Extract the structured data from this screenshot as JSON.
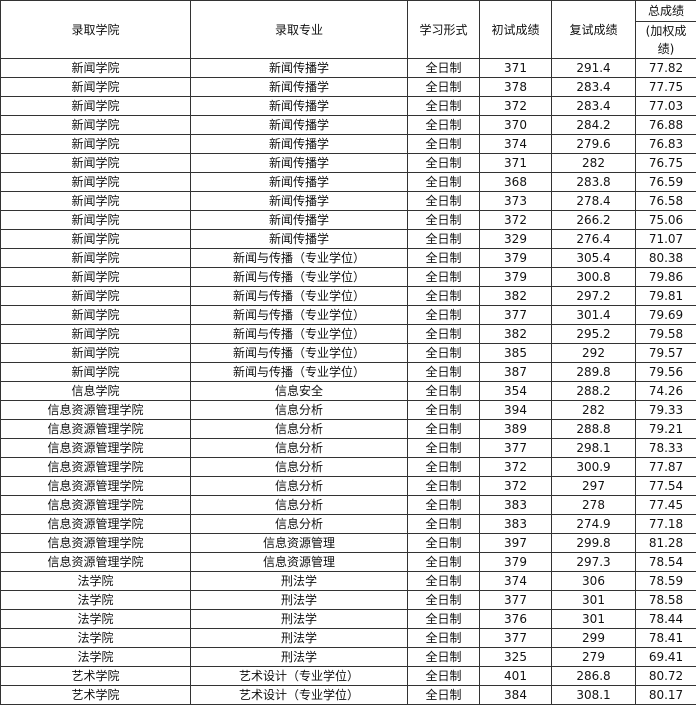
{
  "headers": [
    "录取学院",
    "录取专业",
    "学习形式",
    "初试成绩",
    "复试成绩"
  ],
  "total_header": {
    "top": "总成绩",
    "bottom1": "(加权成",
    "bottom2": "绩)"
  },
  "rows": [
    [
      "新闻学院",
      "新闻传播学",
      "全日制",
      "371",
      "291.4",
      "77.82"
    ],
    [
      "新闻学院",
      "新闻传播学",
      "全日制",
      "378",
      "283.4",
      "77.75"
    ],
    [
      "新闻学院",
      "新闻传播学",
      "全日制",
      "372",
      "283.4",
      "77.03"
    ],
    [
      "新闻学院",
      "新闻传播学",
      "全日制",
      "370",
      "284.2",
      "76.88"
    ],
    [
      "新闻学院",
      "新闻传播学",
      "全日制",
      "374",
      "279.6",
      "76.83"
    ],
    [
      "新闻学院",
      "新闻传播学",
      "全日制",
      "371",
      "282",
      "76.75"
    ],
    [
      "新闻学院",
      "新闻传播学",
      "全日制",
      "368",
      "283.8",
      "76.59"
    ],
    [
      "新闻学院",
      "新闻传播学",
      "全日制",
      "373",
      "278.4",
      "76.58"
    ],
    [
      "新闻学院",
      "新闻传播学",
      "全日制",
      "372",
      "266.2",
      "75.06"
    ],
    [
      "新闻学院",
      "新闻传播学",
      "全日制",
      "329",
      "276.4",
      "71.07"
    ],
    [
      "新闻学院",
      "新闻与传播（专业学位）",
      "全日制",
      "379",
      "305.4",
      "80.38"
    ],
    [
      "新闻学院",
      "新闻与传播（专业学位）",
      "全日制",
      "379",
      "300.8",
      "79.86"
    ],
    [
      "新闻学院",
      "新闻与传播（专业学位）",
      "全日制",
      "382",
      "297.2",
      "79.81"
    ],
    [
      "新闻学院",
      "新闻与传播（专业学位）",
      "全日制",
      "377",
      "301.4",
      "79.69"
    ],
    [
      "新闻学院",
      "新闻与传播（专业学位）",
      "全日制",
      "382",
      "295.2",
      "79.58"
    ],
    [
      "新闻学院",
      "新闻与传播（专业学位）",
      "全日制",
      "385",
      "292",
      "79.57"
    ],
    [
      "新闻学院",
      "新闻与传播（专业学位）",
      "全日制",
      "387",
      "289.8",
      "79.56"
    ],
    [
      "信息学院",
      "信息安全",
      "全日制",
      "354",
      "288.2",
      "74.26"
    ],
    [
      "信息资源管理学院",
      "信息分析",
      "全日制",
      "394",
      "282",
      "79.33"
    ],
    [
      "信息资源管理学院",
      "信息分析",
      "全日制",
      "389",
      "288.8",
      "79.21"
    ],
    [
      "信息资源管理学院",
      "信息分析",
      "全日制",
      "377",
      "298.1",
      "78.33"
    ],
    [
      "信息资源管理学院",
      "信息分析",
      "全日制",
      "372",
      "300.9",
      "77.87"
    ],
    [
      "信息资源管理学院",
      "信息分析",
      "全日制",
      "372",
      "297",
      "77.54"
    ],
    [
      "信息资源管理学院",
      "信息分析",
      "全日制",
      "383",
      "278",
      "77.45"
    ],
    [
      "信息资源管理学院",
      "信息分析",
      "全日制",
      "383",
      "274.9",
      "77.18"
    ],
    [
      "信息资源管理学院",
      "信息资源管理",
      "全日制",
      "397",
      "299.8",
      "81.28"
    ],
    [
      "信息资源管理学院",
      "信息资源管理",
      "全日制",
      "379",
      "297.3",
      "78.54"
    ],
    [
      "法学院",
      "刑法学",
      "全日制",
      "374",
      "306",
      "78.59"
    ],
    [
      "法学院",
      "刑法学",
      "全日制",
      "377",
      "301",
      "78.58"
    ],
    [
      "法学院",
      "刑法学",
      "全日制",
      "376",
      "301",
      "78.44"
    ],
    [
      "法学院",
      "刑法学",
      "全日制",
      "377",
      "299",
      "78.41"
    ],
    [
      "法学院",
      "刑法学",
      "全日制",
      "325",
      "279",
      "69.41"
    ],
    [
      "艺术学院",
      "艺术设计（专业学位）",
      "全日制",
      "401",
      "286.8",
      "80.72"
    ],
    [
      "艺术学院",
      "艺术设计（专业学位）",
      "全日制",
      "384",
      "308.1",
      "80.17"
    ]
  ]
}
